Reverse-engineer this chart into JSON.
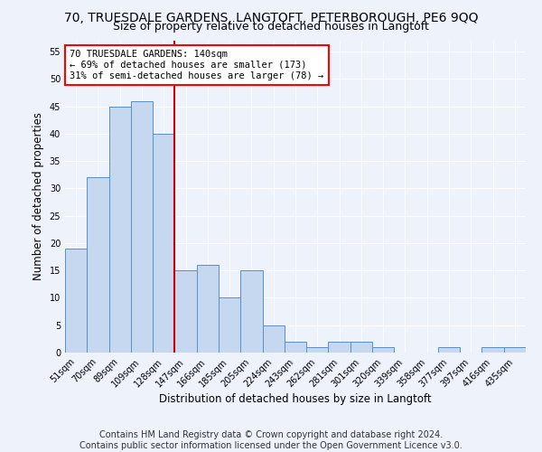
{
  "title": "70, TRUESDALE GARDENS, LANGTOFT, PETERBOROUGH, PE6 9QQ",
  "subtitle": "Size of property relative to detached houses in Langtoft",
  "xlabel": "Distribution of detached houses by size in Langtoft",
  "ylabel": "Number of detached properties",
  "categories": [
    "51sqm",
    "70sqm",
    "89sqm",
    "109sqm",
    "128sqm",
    "147sqm",
    "166sqm",
    "185sqm",
    "205sqm",
    "224sqm",
    "243sqm",
    "262sqm",
    "281sqm",
    "301sqm",
    "320sqm",
    "339sqm",
    "358sqm",
    "377sqm",
    "397sqm",
    "416sqm",
    "435sqm"
  ],
  "values": [
    19,
    32,
    45,
    46,
    40,
    15,
    16,
    10,
    15,
    5,
    2,
    1,
    2,
    2,
    1,
    0,
    0,
    1,
    0,
    1,
    1
  ],
  "bar_color": "#c5d8f0",
  "bar_edge_color": "#5a8fc2",
  "annotation_line1": "70 TRUESDALE GARDENS: 140sqm",
  "annotation_line2": "← 69% of detached houses are smaller (173)",
  "annotation_line3": "31% of semi-detached houses are larger (78) →",
  "annotation_box_color": "white",
  "annotation_box_edge_color": "red",
  "red_line_color": "#cc0000",
  "red_line_x": 4.5,
  "ylim": [
    0,
    57
  ],
  "yticks": [
    0,
    5,
    10,
    15,
    20,
    25,
    30,
    35,
    40,
    45,
    50,
    55
  ],
  "footer": "Contains HM Land Registry data © Crown copyright and database right 2024.\nContains public sector information licensed under the Open Government Licence v3.0.",
  "title_fontsize": 10,
  "xlabel_fontsize": 8.5,
  "ylabel_fontsize": 8.5,
  "tick_fontsize": 7,
  "annotation_fontsize": 7.5,
  "footer_fontsize": 7,
  "background_color": "#eef2fb"
}
